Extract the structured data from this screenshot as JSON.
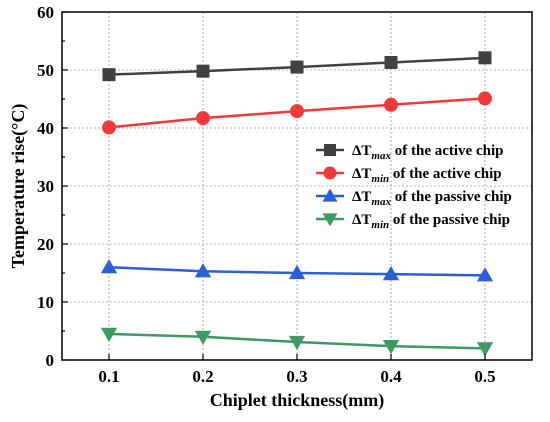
{
  "chart_data": {
    "type": "line",
    "x": [
      0.1,
      0.2,
      0.3,
      0.4,
      0.5
    ],
    "xlabel": "Chiplet thickness(mm)",
    "ylabel": "Temperature rise(°C)",
    "xlim": [
      0.05,
      0.55
    ],
    "ylim": [
      0,
      60
    ],
    "xticks": [
      "0.1",
      "0.2",
      "0.3",
      "0.4",
      "0.5"
    ],
    "yticks": [
      "0",
      "10",
      "20",
      "30",
      "40",
      "50",
      "60"
    ],
    "grid": true,
    "legend_position": "center-right",
    "series": [
      {
        "name_main": "ΔT",
        "name_sub": "max",
        "name_rest": " of the active chip",
        "marker": "square",
        "color": "#404040",
        "values": [
          49.2,
          49.8,
          50.5,
          51.3,
          52.1
        ]
      },
      {
        "name_main": "ΔT",
        "name_sub": "min",
        "name_rest": " of the active chip",
        "marker": "circle",
        "color": "#f03a3a",
        "values": [
          40.1,
          41.7,
          42.9,
          44.0,
          45.1
        ]
      },
      {
        "name_main": "ΔT",
        "name_sub": "max",
        "name_rest": " of the passive chip",
        "marker": "triangle-up",
        "color": "#2a5fd6",
        "values": [
          16.0,
          15.3,
          15.0,
          14.8,
          14.6
        ]
      },
      {
        "name_main": "ΔT",
        "name_sub": "min",
        "name_rest": " of the passive chip",
        "marker": "triangle-down",
        "color": "#3c9a62",
        "values": [
          4.5,
          4.0,
          3.1,
          2.4,
          2.0
        ]
      }
    ]
  }
}
